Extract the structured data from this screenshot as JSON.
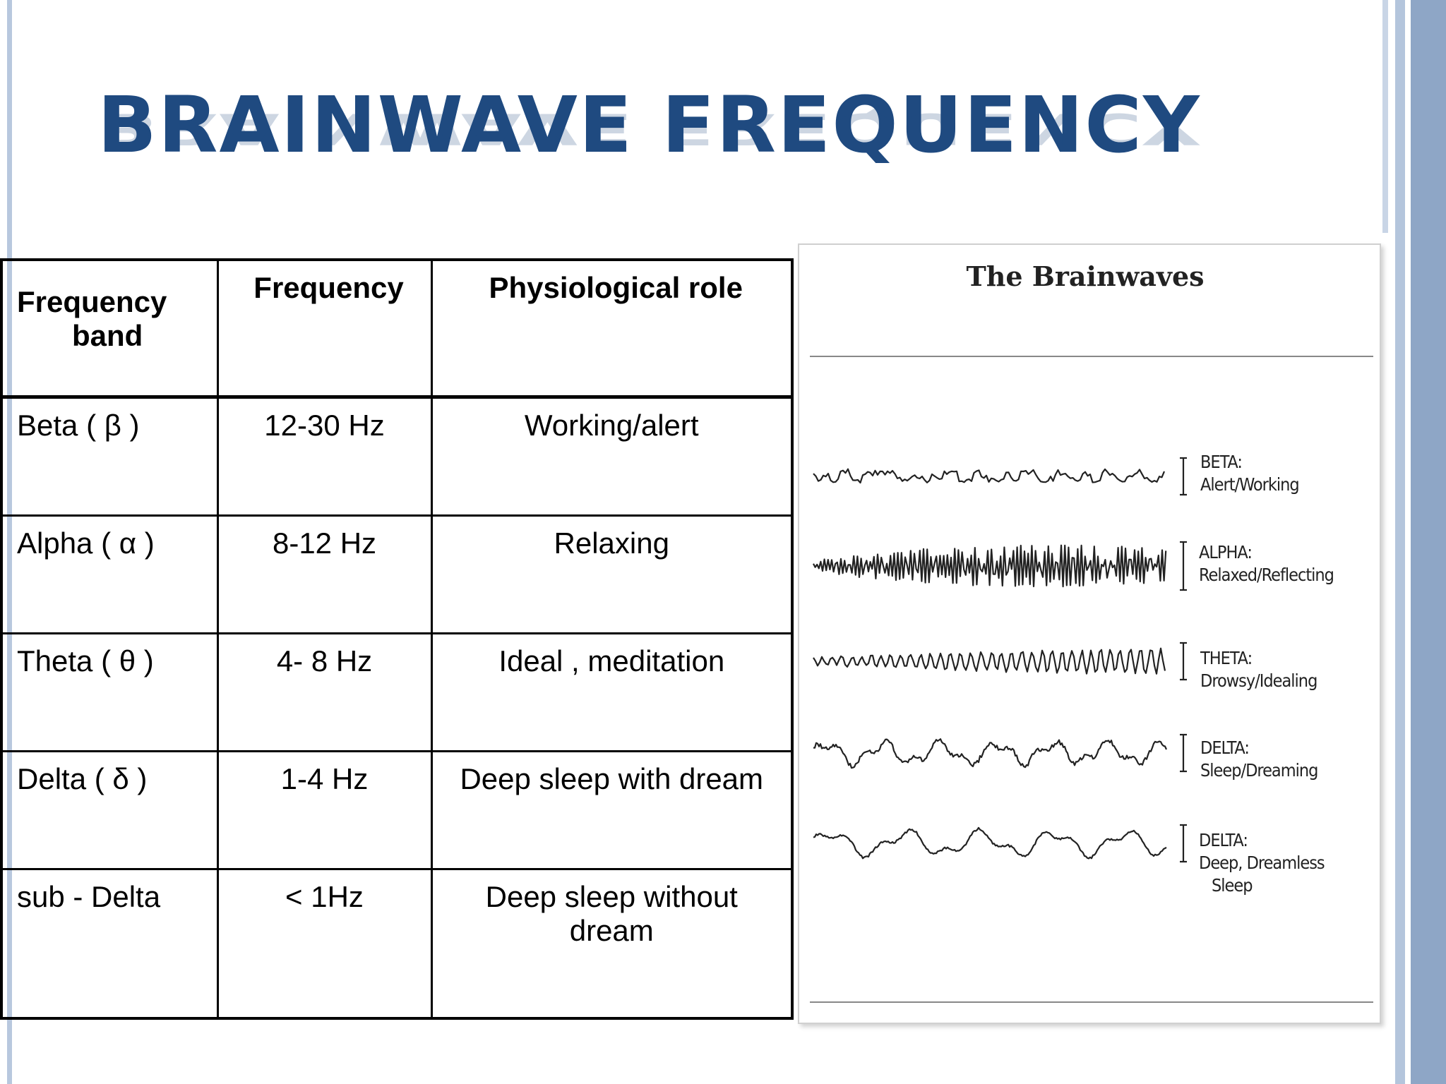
{
  "slide": {
    "title": "BRAINWAVE FREQUENCY"
  },
  "table": {
    "headers": {
      "band_line1": "Frequency",
      "band_line2": "band",
      "frequency": "Frequency",
      "role": "Physiological role"
    },
    "rows": [
      {
        "band": "Beta ( β )",
        "frequency": "12-30 Hz",
        "role": "Working/alert"
      },
      {
        "band": "Alpha ( α )",
        "frequency": "8-12 Hz",
        "role": "Relaxing"
      },
      {
        "band": "Theta ( θ )",
        "frequency": "4- 8 Hz",
        "role": "Ideal , meditation"
      },
      {
        "band": "Delta ( δ )",
        "frequency": "1-4 Hz",
        "role": "Deep sleep with dream"
      },
      {
        "band": "sub - Delta",
        "frequency": "< 1Hz",
        "role_line1": "Deep sleep without",
        "role_line2": "dream"
      }
    ]
  },
  "figure": {
    "title": "The Brainwaves",
    "waves": [
      {
        "name": "BETA:",
        "desc": "Alert/Working"
      },
      {
        "name": "ALPHA:",
        "desc": "Relaxed/Reflecting"
      },
      {
        "name": "THETA:",
        "desc": "Drowsy/Idealing"
      },
      {
        "name": "DELTA:",
        "desc": "Sleep/Dreaming"
      },
      {
        "name": "DELTA:",
        "desc_line1": "Deep, Dreamless",
        "desc_line2": "Sleep"
      }
    ]
  },
  "colors": {
    "title": "#1f4a80",
    "accent_bar": "#8ea6c6"
  }
}
